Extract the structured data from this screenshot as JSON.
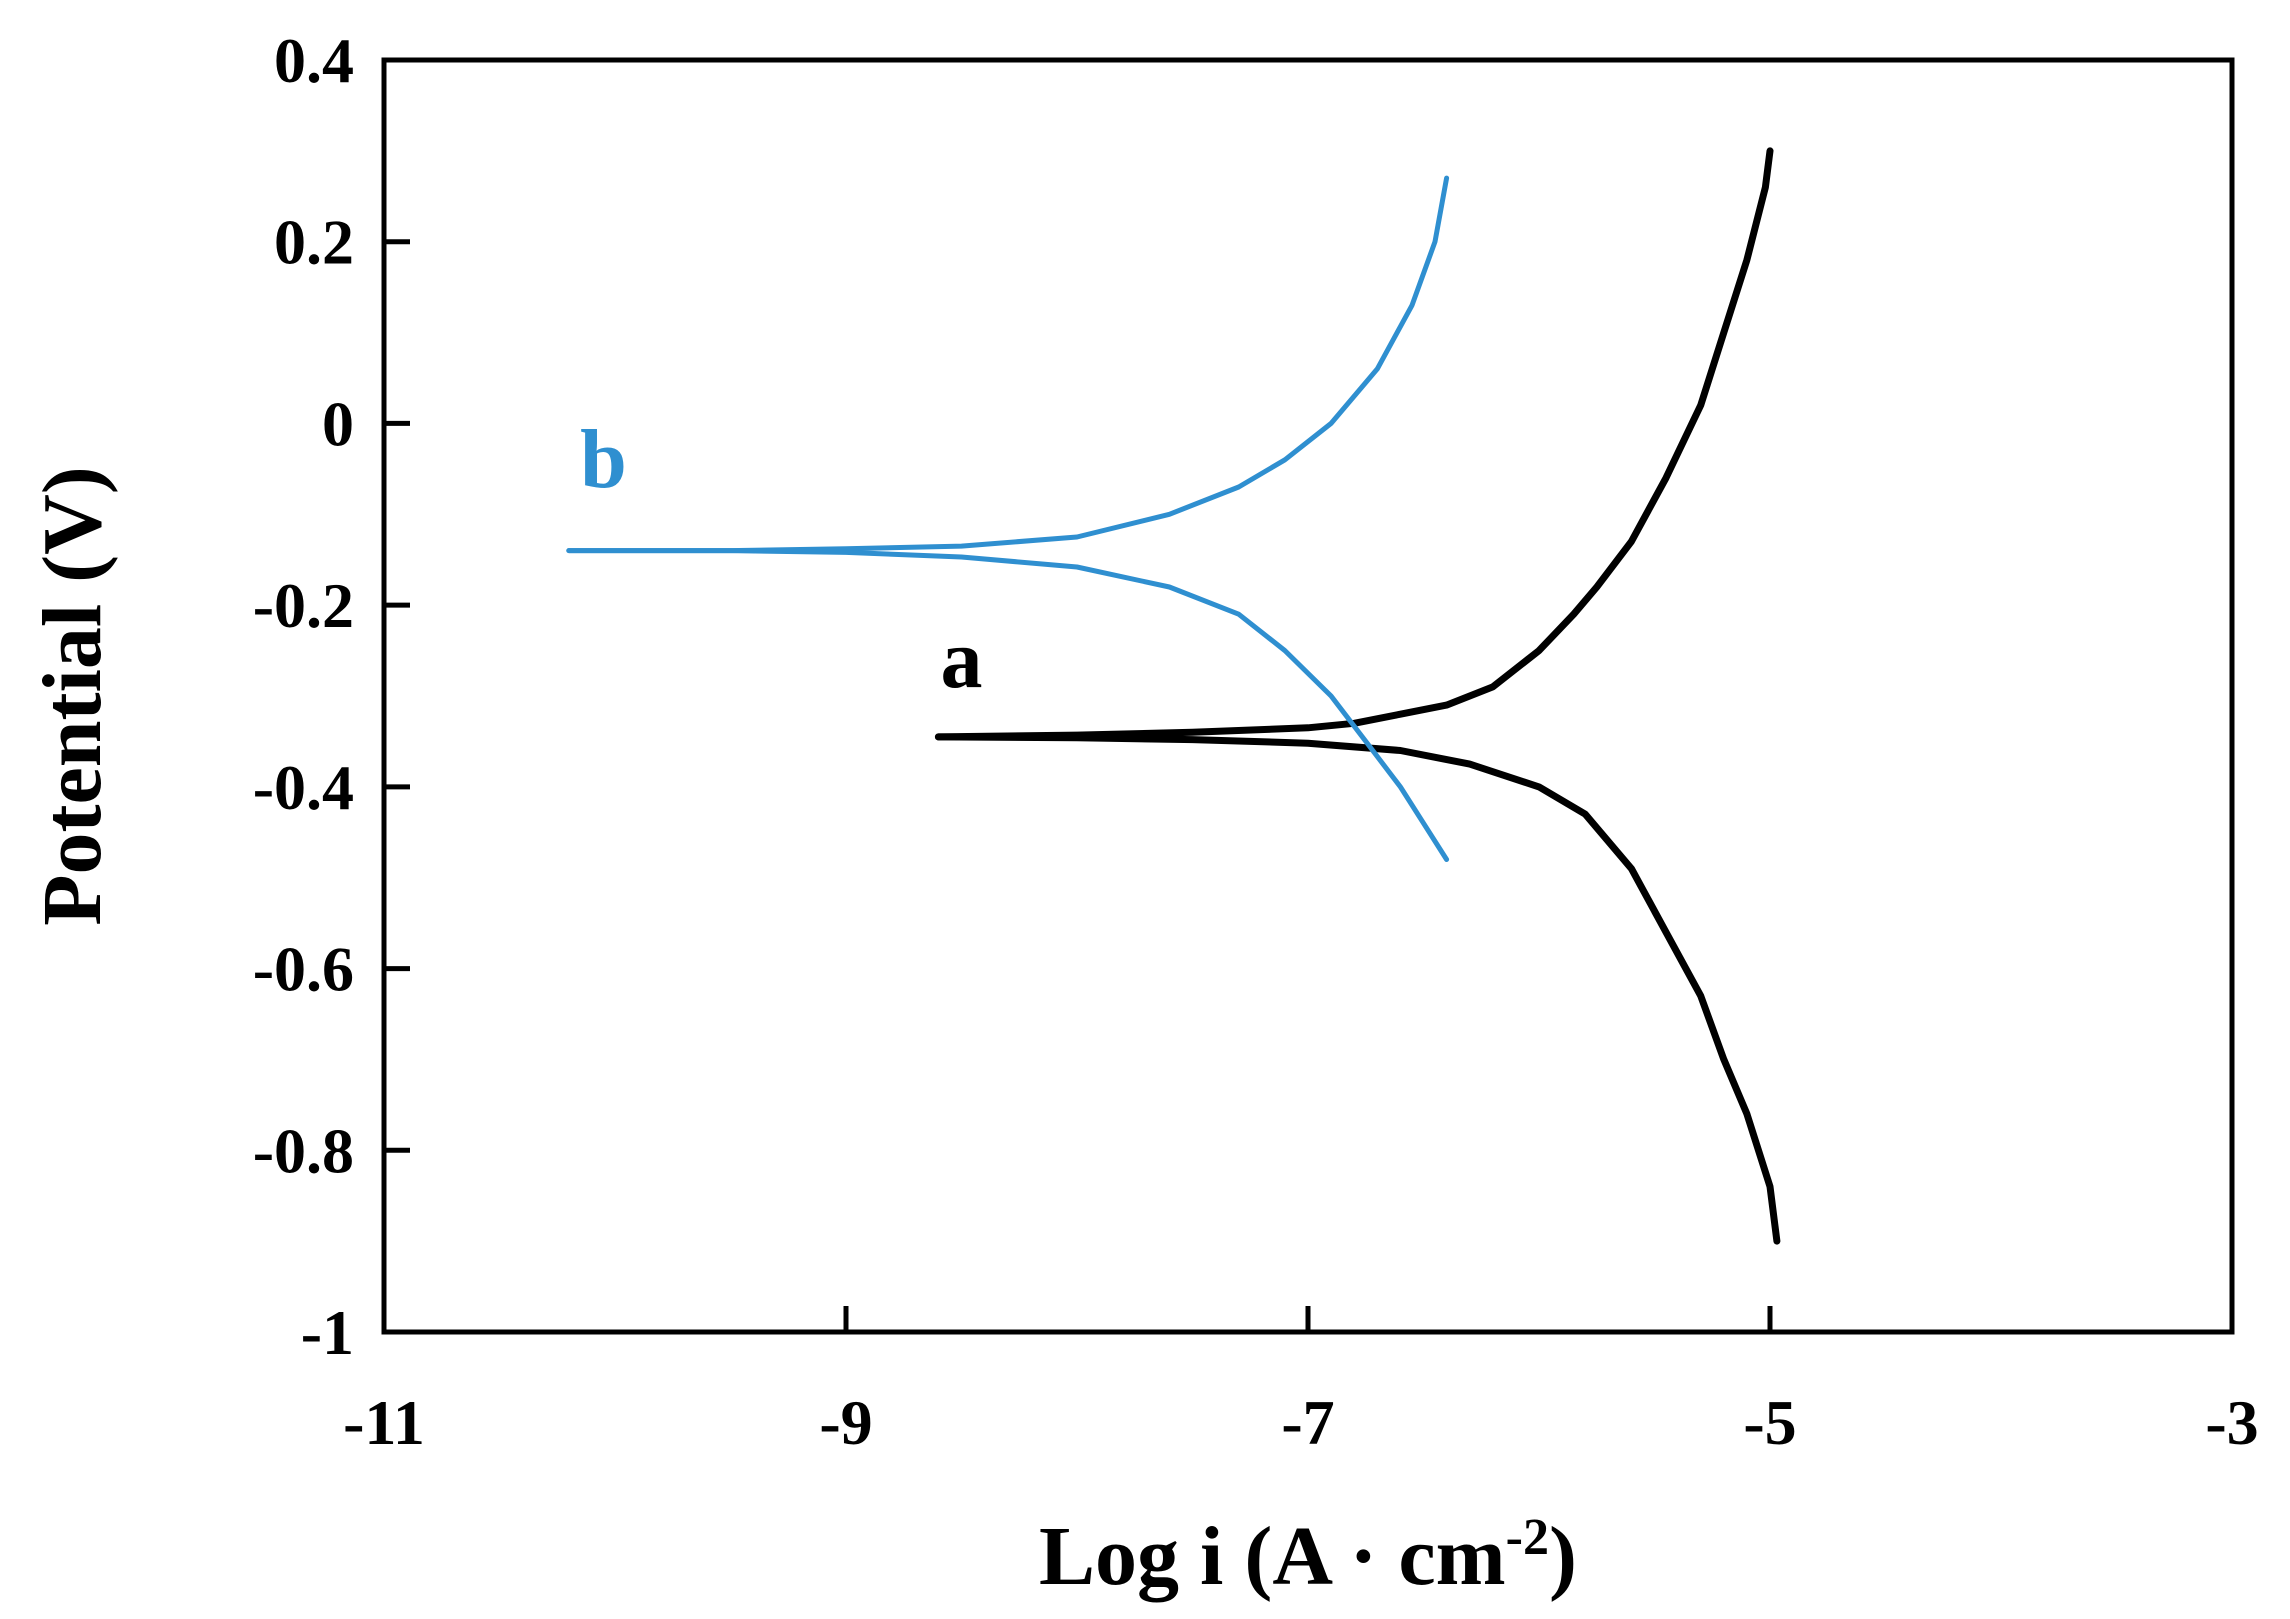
{
  "chart_data": {
    "type": "line",
    "title": "",
    "xlabel_main": "Log i (A · cm",
    "xlabel_sup": "-2",
    "xlabel_end": ")",
    "ylabel": "Potential (V)",
    "xlim": [
      -11,
      -3
    ],
    "ylim": [
      -1,
      0.4
    ],
    "xticks": [
      "-11",
      "-9",
      "-7",
      "-5",
      "-3"
    ],
    "xtick_values": [
      -11,
      -9,
      -7,
      -5,
      -3
    ],
    "yticks": [
      "-1",
      "-0.8",
      "-0.6",
      "-0.4",
      "-0.2",
      "0",
      "0.2",
      "0.4"
    ],
    "ytick_values": [
      -1,
      -0.8,
      -0.6,
      -0.4,
      -0.2,
      0,
      0.2,
      0.4
    ],
    "grid": false,
    "legend": "none",
    "series": [
      {
        "name": "a",
        "color": "#000000",
        "label_at": [
          -8.5,
          -0.29
        ],
        "branches": [
          {
            "part": "anodic",
            "x": [
              -8.6,
              -8.0,
              -7.5,
              -7.0,
              -6.8,
              -6.6,
              -6.4,
              -6.2,
              -6.0,
              -5.85,
              -5.75,
              -5.6,
              -5.45,
              -5.3,
              -5.2,
              -5.1,
              -5.02,
              -5.0
            ],
            "y": [
              -0.345,
              -0.343,
              -0.34,
              -0.335,
              -0.33,
              -0.32,
              -0.31,
              -0.29,
              -0.25,
              -0.21,
              -0.18,
              -0.13,
              -0.06,
              0.02,
              0.1,
              0.18,
              0.26,
              0.3
            ]
          },
          {
            "part": "cathodic",
            "x": [
              -8.6,
              -8.0,
              -7.5,
              -7.0,
              -6.6,
              -6.3,
              -6.0,
              -5.8,
              -5.6,
              -5.45,
              -5.3,
              -5.2,
              -5.1,
              -5.0,
              -4.97
            ],
            "y": [
              -0.345,
              -0.346,
              -0.348,
              -0.352,
              -0.36,
              -0.375,
              -0.4,
              -0.43,
              -0.49,
              -0.56,
              -0.63,
              -0.7,
              -0.76,
              -0.84,
              -0.9
            ]
          }
        ]
      },
      {
        "name": "b",
        "color": "#2f8fd0",
        "label_at": [
          -10.05,
          -0.07
        ],
        "branches": [
          {
            "part": "anodic",
            "x": [
              -10.2,
              -9.5,
              -9.0,
              -8.5,
              -8.0,
              -7.6,
              -7.3,
              -7.1,
              -6.9,
              -6.7,
              -6.55,
              -6.45,
              -6.4
            ],
            "y": [
              -0.14,
              -0.14,
              -0.138,
              -0.135,
              -0.125,
              -0.1,
              -0.07,
              -0.04,
              0.0,
              0.06,
              0.13,
              0.2,
              0.27
            ]
          },
          {
            "part": "cathodic",
            "x": [
              -10.2,
              -9.5,
              -9.0,
              -8.5,
              -8.0,
              -7.6,
              -7.3,
              -7.1,
              -6.9,
              -6.75,
              -6.6,
              -6.5,
              -6.4
            ],
            "y": [
              -0.14,
              -0.14,
              -0.142,
              -0.147,
              -0.158,
              -0.18,
              -0.21,
              -0.25,
              -0.3,
              -0.35,
              -0.4,
              -0.44,
              -0.48
            ]
          }
        ]
      }
    ]
  }
}
